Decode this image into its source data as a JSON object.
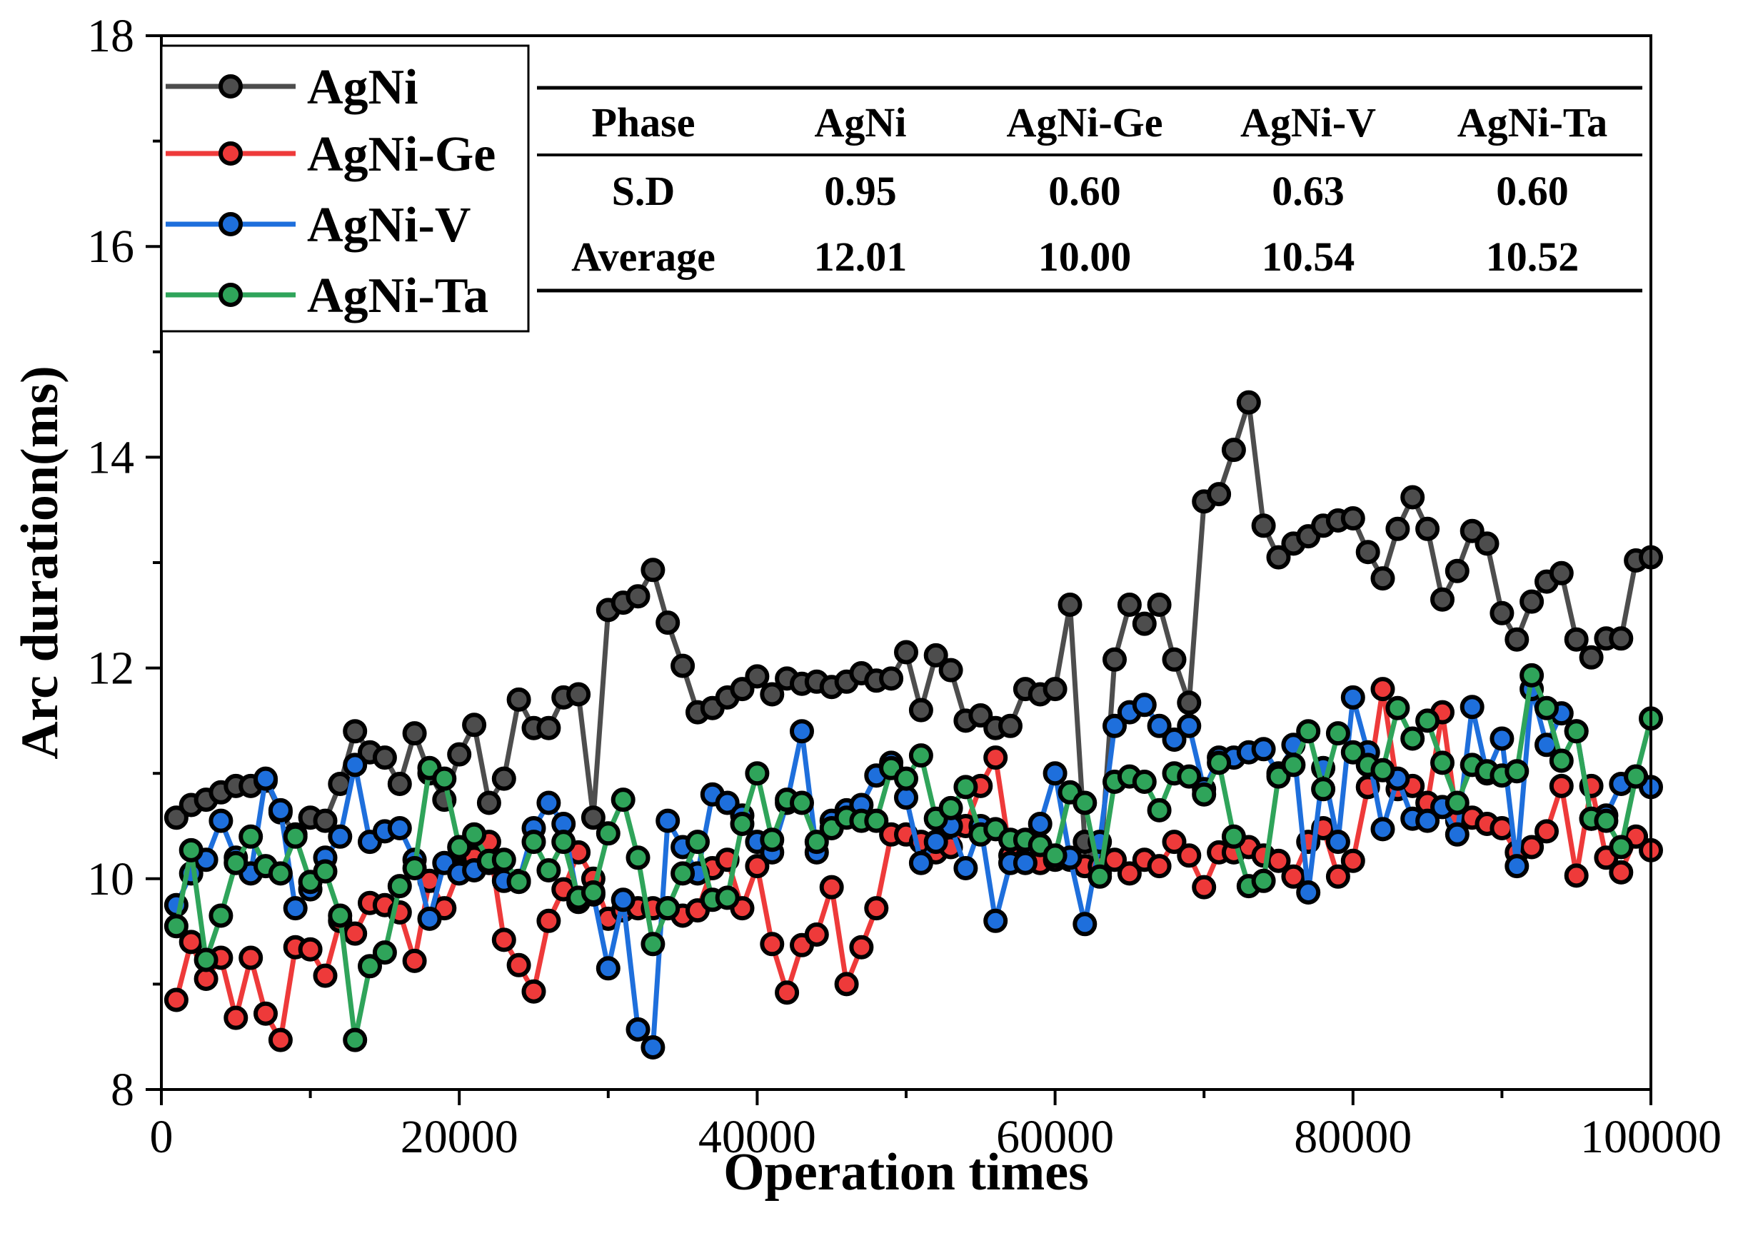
{
  "chart_data": {
    "type": "line",
    "title": "",
    "xlabel": "Operation times",
    "ylabel": "Arc duration(ms)",
    "xlim": [
      0,
      100000
    ],
    "ylim": [
      8,
      18
    ],
    "x_ticks": [
      0,
      20000,
      40000,
      60000,
      80000,
      100000
    ],
    "x_tick_labels": [
      "0",
      "20000",
      "40000",
      "60000",
      "80000",
      "100000"
    ],
    "y_ticks": [
      8,
      10,
      12,
      14,
      16,
      18
    ],
    "y_tick_labels": [
      "8",
      "10",
      "12",
      "14",
      "16",
      "18"
    ],
    "grid": false,
    "legend_position": "top-left",
    "x": [
      1000,
      2000,
      3000,
      4000,
      5000,
      6000,
      7000,
      8000,
      9000,
      10000,
      11000,
      12000,
      13000,
      14000,
      15000,
      16000,
      17000,
      18000,
      19000,
      20000,
      21000,
      22000,
      23000,
      24000,
      25000,
      26000,
      27000,
      28000,
      29000,
      30000,
      31000,
      32000,
      33000,
      34000,
      35000,
      36000,
      37000,
      38000,
      39000,
      40000,
      41000,
      42000,
      43000,
      44000,
      45000,
      46000,
      47000,
      48000,
      49000,
      50000,
      51000,
      52000,
      53000,
      54000,
      55000,
      56000,
      57000,
      58000,
      59000,
      60000,
      61000,
      62000,
      63000,
      64000,
      65000,
      66000,
      67000,
      68000,
      69000,
      70000,
      71000,
      72000,
      73000,
      74000,
      75000,
      76000,
      77000,
      78000,
      79000,
      80000,
      81000,
      82000,
      83000,
      84000,
      85000,
      86000,
      87000,
      88000,
      89000,
      90000,
      91000,
      92000,
      93000,
      94000,
      95000,
      96000,
      97000,
      98000,
      99000,
      100000
    ],
    "series": [
      {
        "name": "AgNi",
        "color": "#4d4d4d",
        "values": [
          10.58,
          10.7,
          10.75,
          10.82,
          10.88,
          10.88,
          10.93,
          10.63,
          10.42,
          10.58,
          10.55,
          10.9,
          11.4,
          11.2,
          11.15,
          10.9,
          11.38,
          11.0,
          10.75,
          11.18,
          11.46,
          10.72,
          10.95,
          11.7,
          11.43,
          11.43,
          11.72,
          11.75,
          10.58,
          12.55,
          12.62,
          12.68,
          12.93,
          12.43,
          12.02,
          11.58,
          11.62,
          11.72,
          11.8,
          11.92,
          11.75,
          11.9,
          11.85,
          11.87,
          11.82,
          11.87,
          11.95,
          11.88,
          11.9,
          12.15,
          11.6,
          12.12,
          11.98,
          11.5,
          11.55,
          11.43,
          11.45,
          11.8,
          11.75,
          11.8,
          12.6,
          10.35,
          10.05,
          12.08,
          12.6,
          12.42,
          12.6,
          12.08,
          11.67,
          13.58,
          13.65,
          14.07,
          14.52,
          13.35,
          13.05,
          13.18,
          13.25,
          13.35,
          13.4,
          13.42,
          13.1,
          12.85,
          13.32,
          13.62,
          13.32,
          12.65,
          12.92,
          13.3,
          13.18,
          12.52,
          12.27,
          12.63,
          12.82,
          12.9,
          12.27,
          12.1,
          12.28,
          12.28,
          13.02,
          13.05
        ]
      },
      {
        "name": "AgNi-Ge",
        "color": "#ee3a3a",
        "values": [
          8.85,
          9.4,
          9.05,
          9.25,
          8.68,
          9.25,
          8.72,
          8.47,
          9.35,
          9.33,
          9.08,
          9.6,
          9.48,
          9.77,
          9.75,
          9.68,
          9.22,
          9.98,
          9.72,
          10.08,
          10.2,
          10.35,
          9.42,
          9.18,
          8.93,
          9.6,
          9.9,
          10.25,
          10.0,
          9.62,
          9.7,
          9.72,
          9.72,
          9.72,
          9.65,
          9.7,
          10.1,
          10.18,
          9.72,
          10.12,
          9.38,
          8.92,
          9.37,
          9.47,
          9.92,
          9.0,
          9.35,
          9.72,
          10.42,
          10.42,
          10.35,
          10.25,
          10.3,
          10.5,
          10.88,
          11.15,
          10.22,
          10.18,
          10.15,
          10.18,
          10.18,
          10.12,
          10.12,
          10.18,
          10.05,
          10.18,
          10.12,
          10.35,
          10.22,
          9.92,
          10.25,
          10.25,
          10.3,
          10.22,
          10.17,
          10.02,
          10.35,
          10.48,
          10.02,
          10.17,
          10.87,
          11.8,
          10.85,
          10.88,
          10.72,
          11.58,
          10.55,
          10.58,
          10.52,
          10.48,
          10.25,
          10.3,
          10.45,
          10.88,
          10.03,
          10.88,
          10.2,
          10.06,
          10.4,
          10.27
        ]
      },
      {
        "name": "AgNi-V",
        "color": "#1e6fdc",
        "values": [
          9.75,
          10.05,
          10.18,
          10.55,
          10.2,
          10.05,
          10.95,
          10.65,
          9.72,
          9.9,
          10.2,
          10.4,
          11.08,
          10.35,
          10.45,
          10.48,
          10.18,
          9.62,
          10.15,
          10.05,
          10.08,
          10.15,
          9.98,
          9.98,
          10.48,
          10.72,
          10.52,
          9.78,
          9.85,
          9.15,
          9.8,
          8.57,
          8.4,
          10.55,
          10.3,
          10.05,
          10.8,
          10.72,
          10.6,
          10.35,
          10.25,
          10.72,
          11.4,
          10.25,
          10.55,
          10.65,
          10.7,
          10.98,
          11.1,
          10.77,
          10.15,
          10.35,
          10.5,
          10.1,
          10.5,
          9.6,
          10.15,
          10.15,
          10.52,
          11.0,
          10.2,
          9.57,
          10.35,
          11.45,
          11.58,
          11.65,
          11.45,
          11.32,
          11.45,
          10.85,
          11.15,
          11.15,
          11.2,
          11.23,
          11.0,
          11.27,
          9.87,
          11.05,
          10.35,
          11.72,
          11.2,
          10.47,
          10.95,
          10.57,
          10.55,
          10.68,
          10.42,
          11.63,
          11.0,
          11.33,
          10.12,
          11.8,
          11.27,
          11.57,
          11.4,
          10.57,
          10.6,
          10.9,
          10.97,
          10.87
        ]
      },
      {
        "name": "AgNi-Ta",
        "color": "#2fa45a",
        "values": [
          9.55,
          10.27,
          9.23,
          9.65,
          10.15,
          10.4,
          10.12,
          10.05,
          10.4,
          9.97,
          10.07,
          9.65,
          8.47,
          9.17,
          9.3,
          9.93,
          10.1,
          11.05,
          10.95,
          10.3,
          10.42,
          10.17,
          10.18,
          9.97,
          10.35,
          10.08,
          10.35,
          9.82,
          9.87,
          10.43,
          10.75,
          10.2,
          9.38,
          9.72,
          10.05,
          10.35,
          9.8,
          9.82,
          10.52,
          11.0,
          10.37,
          10.75,
          10.72,
          10.35,
          10.48,
          10.58,
          10.55,
          10.55,
          11.05,
          10.95,
          11.17,
          10.57,
          10.67,
          10.87,
          10.42,
          10.47,
          10.37,
          10.37,
          10.32,
          10.22,
          10.82,
          10.72,
          10.02,
          10.92,
          10.97,
          10.92,
          10.65,
          11.0,
          10.97,
          10.8,
          11.1,
          10.4,
          9.93,
          9.98,
          10.97,
          11.08,
          11.4,
          10.85,
          11.38,
          11.2,
          11.08,
          11.03,
          11.62,
          11.33,
          11.5,
          11.1,
          10.72,
          11.08,
          11.02,
          10.98,
          11.02,
          11.93,
          11.62,
          11.12,
          11.4,
          10.57,
          10.55,
          10.3,
          10.97,
          11.52
        ]
      }
    ],
    "table": {
      "headers": [
        "Phase",
        "AgNi",
        "AgNi-Ge",
        "AgNi-V",
        "AgNi-Ta"
      ],
      "rows": [
        [
          "S.D",
          "0.95",
          "0.60",
          "0.63",
          "0.60"
        ],
        [
          "Average",
          "12.01",
          "10.00",
          "10.54",
          "10.52"
        ]
      ]
    }
  }
}
